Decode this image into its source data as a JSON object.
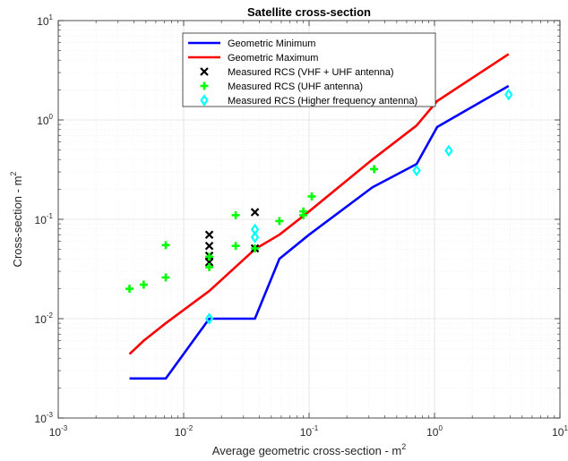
{
  "chart_data": {
    "type": "line",
    "title": "Satellite cross-section",
    "xlabel": {
      "base": "Average geometric cross-section - m",
      "sup": "2"
    },
    "ylabel": {
      "base": "Cross-section - m",
      "sup": "2"
    },
    "xscale": "log",
    "yscale": "log",
    "xlim": [
      0.001,
      10
    ],
    "ylim": [
      0.001,
      10
    ],
    "x_ticks": [
      {
        "base": "10",
        "exp": "-3",
        "value": 0.001
      },
      {
        "base": "10",
        "exp": "-2",
        "value": 0.01
      },
      {
        "base": "10",
        "exp": "-1",
        "value": 0.1
      },
      {
        "base": "10",
        "exp": "0",
        "value": 1
      },
      {
        "base": "10",
        "exp": "1",
        "value": 10
      }
    ],
    "y_ticks": [
      {
        "base": "10",
        "exp": "-3",
        "value": 0.001
      },
      {
        "base": "10",
        "exp": "-2",
        "value": 0.01
      },
      {
        "base": "10",
        "exp": "-1",
        "value": 0.1
      },
      {
        "base": "10",
        "exp": "0",
        "value": 1
      },
      {
        "base": "10",
        "exp": "1",
        "value": 10
      }
    ],
    "grid": true,
    "legend_position": "top-center",
    "series": [
      {
        "name": "Geometric Minimum",
        "kind": "line",
        "color": "#0000ff",
        "x": [
          0.0037,
          0.0072,
          0.016,
          0.037,
          0.058,
          0.1,
          0.32,
          0.72,
          1.05,
          3.9
        ],
        "y": [
          0.0025,
          0.0025,
          0.01,
          0.01,
          0.04,
          0.07,
          0.21,
          0.36,
          0.85,
          2.2
        ]
      },
      {
        "name": "Geometric Maximum",
        "kind": "line",
        "color": "#ff0000",
        "x": [
          0.0037,
          0.0048,
          0.0072,
          0.016,
          0.037,
          0.058,
          0.1,
          0.32,
          0.72,
          1.05,
          3.9
        ],
        "y": [
          0.0044,
          0.006,
          0.009,
          0.019,
          0.05,
          0.07,
          0.12,
          0.4,
          0.88,
          1.55,
          4.6
        ]
      },
      {
        "name": "Measured RCS (VHF + UHF antenna)",
        "kind": "scatter",
        "marker": "x",
        "color": "#000000",
        "x": [
          0.016,
          0.016,
          0.016,
          0.016,
          0.037,
          0.037
        ],
        "y": [
          0.07,
          0.054,
          0.043,
          0.037,
          0.118,
          0.051
        ]
      },
      {
        "name": "Measured RCS (UHF antenna)",
        "kind": "scatter",
        "marker": "+",
        "color": "#00ff00",
        "x": [
          0.0037,
          0.0048,
          0.0072,
          0.0072,
          0.016,
          0.016,
          0.026,
          0.026,
          0.037,
          0.058,
          0.09,
          0.09,
          0.105,
          0.33
        ],
        "y": [
          0.02,
          0.022,
          0.026,
          0.055,
          0.042,
          0.033,
          0.054,
          0.11,
          0.051,
          0.096,
          0.11,
          0.12,
          0.17,
          0.32
        ]
      },
      {
        "name": "Measured RCS (Higher frequency antenna)",
        "kind": "scatter",
        "marker": "diamond",
        "color": "#00ffff",
        "x": [
          0.016,
          0.037,
          0.037,
          0.72,
          1.3,
          3.9
        ],
        "y": [
          0.01,
          0.066,
          0.079,
          0.31,
          0.49,
          1.8
        ]
      }
    ]
  }
}
